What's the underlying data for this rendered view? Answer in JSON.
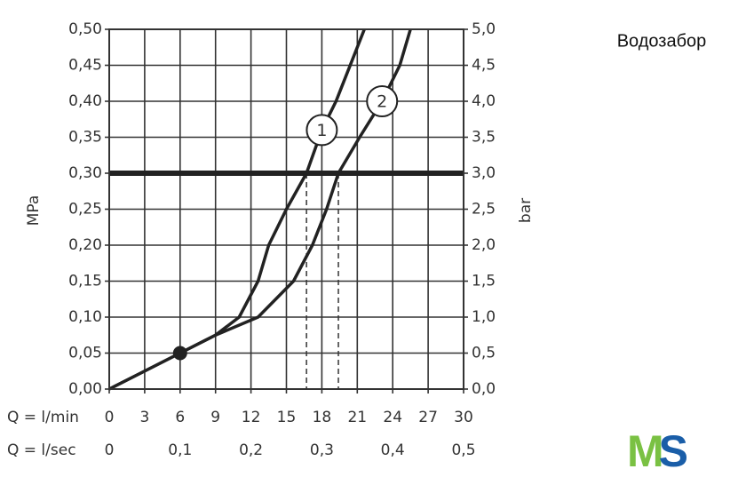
{
  "chart_data": {
    "type": "line",
    "title": "Водозабор",
    "ylabel": "MPa",
    "y2label": "bar",
    "xlabel": "Q = l/min",
    "x2label": "Q = l/sec",
    "xlim": [
      0,
      30
    ],
    "xticks": [
      0,
      3,
      6,
      9,
      12,
      15,
      18,
      21,
      24,
      27,
      30
    ],
    "x2lim": [
      0,
      0.5
    ],
    "x2ticks": [
      0,
      {
        "value": 0.1,
        "label": "0,1"
      },
      {
        "value": 0.2,
        "label": "0,2"
      },
      {
        "value": 0.3,
        "label": "0,3"
      },
      {
        "value": 0.4,
        "label": "0,4"
      },
      {
        "value": 0.5,
        "label": "0,5"
      }
    ],
    "ylim": [
      0,
      0.5
    ],
    "yticks": [
      {
        "value": 0,
        "label": "0,00"
      },
      {
        "value": 0.05,
        "label": "0,05"
      },
      {
        "value": 0.1,
        "label": "0,10"
      },
      {
        "value": 0.15,
        "label": "0,15"
      },
      {
        "value": 0.2,
        "label": "0,20"
      },
      {
        "value": 0.25,
        "label": "0,25"
      },
      {
        "value": 0.3,
        "label": "0,30"
      },
      {
        "value": 0.35,
        "label": "0,35"
      },
      {
        "value": 0.4,
        "label": "0,40"
      },
      {
        "value": 0.45,
        "label": "0,45"
      },
      {
        "value": 0.5,
        "label": "0,50"
      }
    ],
    "y2lim": [
      0,
      5
    ],
    "y2ticks": [
      {
        "value": 0,
        "label": "0,0"
      },
      {
        "value": 0.5,
        "label": "0,5"
      },
      {
        "value": 1,
        "label": "1,0"
      },
      {
        "value": 1.5,
        "label": "1,5"
      },
      {
        "value": 2,
        "label": "2,0"
      },
      {
        "value": 2.5,
        "label": "2,5"
      },
      {
        "value": 3,
        "label": "3,0"
      },
      {
        "value": 3.5,
        "label": "3,5"
      },
      {
        "value": 4,
        "label": "4,0"
      },
      {
        "value": 4.5,
        "label": "4,5"
      },
      {
        "value": 5,
        "label": "5,0"
      }
    ],
    "grid": true,
    "hline": 0.3,
    "drop_lines": [
      16.7,
      19.4
    ],
    "point": {
      "x": 6,
      "y": 0.05
    },
    "series": [
      {
        "name": "1",
        "color": "#222222",
        "x": [
          0,
          3,
          6,
          9,
          11,
          12.6,
          13.5,
          15,
          16.7,
          18,
          19.2,
          21.6
        ],
        "values": [
          0,
          0.025,
          0.05,
          0.075,
          0.1,
          0.15,
          0.2,
          0.25,
          0.3,
          0.36,
          0.4,
          0.5
        ]
      },
      {
        "name": "2",
        "color": "#222222",
        "x": [
          0,
          3,
          6,
          9,
          12.6,
          15.6,
          17.2,
          18.4,
          19.4,
          21.2,
          23.1,
          24.6,
          25.5
        ],
        "values": [
          0,
          0.025,
          0.05,
          0.075,
          0.1,
          0.15,
          0.2,
          0.25,
          0.3,
          0.35,
          0.4,
          0.45,
          0.5
        ]
      }
    ]
  },
  "logo": [
    "M",
    "S"
  ]
}
